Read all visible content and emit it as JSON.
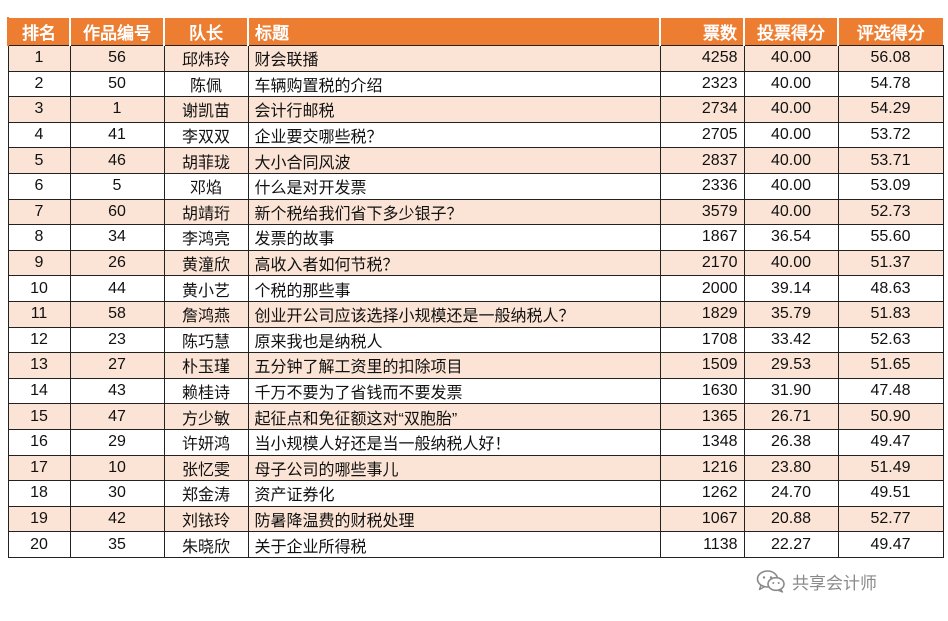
{
  "table": {
    "headers": {
      "rank": "排名",
      "work_no": "作品编号",
      "leader": "队长",
      "title": "标题",
      "votes": "票数",
      "vote_score": "投票得分",
      "eval_score": "评选得分"
    },
    "rows": [
      {
        "rank": "1",
        "work_no": "56",
        "leader": "邱炜玲",
        "title": "财会联播",
        "votes": "4258",
        "vote_score": "40.00",
        "eval_score": "56.08"
      },
      {
        "rank": "2",
        "work_no": "50",
        "leader": "陈佩",
        "title": "车辆购置税的介绍",
        "votes": "2323",
        "vote_score": "40.00",
        "eval_score": "54.78"
      },
      {
        "rank": "3",
        "work_no": "1",
        "leader": "谢凯苗",
        "title": "会计行邮税",
        "votes": "2734",
        "vote_score": "40.00",
        "eval_score": "54.29"
      },
      {
        "rank": "4",
        "work_no": "41",
        "leader": "李双双",
        "title": "企业要交哪些税？",
        "votes": "2705",
        "vote_score": "40.00",
        "eval_score": "53.72"
      },
      {
        "rank": "5",
        "work_no": "46",
        "leader": "胡菲珑",
        "title": "大小合同风波",
        "votes": "2837",
        "vote_score": "40.00",
        "eval_score": "53.71"
      },
      {
        "rank": "6",
        "work_no": "5",
        "leader": "邓焰",
        "title": "什么是对开发票",
        "votes": "2336",
        "vote_score": "40.00",
        "eval_score": "53.09"
      },
      {
        "rank": "7",
        "work_no": "60",
        "leader": "胡靖珩",
        "title": "新个税给我们省下多少银子？",
        "votes": "3579",
        "vote_score": "40.00",
        "eval_score": "52.73"
      },
      {
        "rank": "8",
        "work_no": "34",
        "leader": "李鸿亮",
        "title": "发票的故事",
        "votes": "1867",
        "vote_score": "36.54",
        "eval_score": "55.60"
      },
      {
        "rank": "9",
        "work_no": "26",
        "leader": "黄潼欣",
        "title": "高收入者如何节税？",
        "votes": "2170",
        "vote_score": "40.00",
        "eval_score": "51.37"
      },
      {
        "rank": "10",
        "work_no": "44",
        "leader": "黄小艺",
        "title": "个税的那些事",
        "votes": "2000",
        "vote_score": "39.14",
        "eval_score": "48.63"
      },
      {
        "rank": "11",
        "work_no": "58",
        "leader": "詹鸿燕",
        "title": "创业开公司应该选择小规模还是一般纳税人？",
        "votes": "1829",
        "vote_score": "35.79",
        "eval_score": "51.83"
      },
      {
        "rank": "12",
        "work_no": "23",
        "leader": "陈巧慧",
        "title": "原来我也是纳税人",
        "votes": "1708",
        "vote_score": "33.42",
        "eval_score": "52.63"
      },
      {
        "rank": "13",
        "work_no": "27",
        "leader": "朴玉瑾",
        "title": "五分钟了解工资里的扣除项目",
        "votes": "1509",
        "vote_score": "29.53",
        "eval_score": "51.65"
      },
      {
        "rank": "14",
        "work_no": "43",
        "leader": "赖桂诗",
        "title": "千万不要为了省钱而不要发票",
        "votes": "1630",
        "vote_score": "31.90",
        "eval_score": "47.48"
      },
      {
        "rank": "15",
        "work_no": "47",
        "leader": "方少敏",
        "title": "起征点和免征额这对“双胞胎”",
        "votes": "1365",
        "vote_score": "26.71",
        "eval_score": "50.90"
      },
      {
        "rank": "16",
        "work_no": "29",
        "leader": "许妍鸿",
        "title": "当小规模人好还是当一般纳税人好！",
        "votes": "1348",
        "vote_score": "26.38",
        "eval_score": "49.47"
      },
      {
        "rank": "17",
        "work_no": "10",
        "leader": "张忆雯",
        "title": "母子公司的哪些事儿",
        "votes": "1216",
        "vote_score": "23.80",
        "eval_score": "51.49"
      },
      {
        "rank": "18",
        "work_no": "30",
        "leader": "郑金涛",
        "title": "资产证券化",
        "votes": "1262",
        "vote_score": "24.70",
        "eval_score": "49.51"
      },
      {
        "rank": "19",
        "work_no": "42",
        "leader": "刘铱玲",
        "title": "防暑降温费的财税处理",
        "votes": "1067",
        "vote_score": "20.88",
        "eval_score": "52.77"
      },
      {
        "rank": "20",
        "work_no": "35",
        "leader": "朱晓欣",
        "title": "关于企业所得税",
        "votes": "1138",
        "vote_score": "22.27",
        "eval_score": "49.47"
      }
    ]
  },
  "watermark": {
    "icon": "wechat-icon",
    "text": "共享会计师",
    "color": "#8a8a8a"
  },
  "colors": {
    "header_bg": "#ED7D31",
    "header_text": "#FFFFFF",
    "row_band": "#FBE4D5",
    "row_plain": "#FFFFFF"
  }
}
